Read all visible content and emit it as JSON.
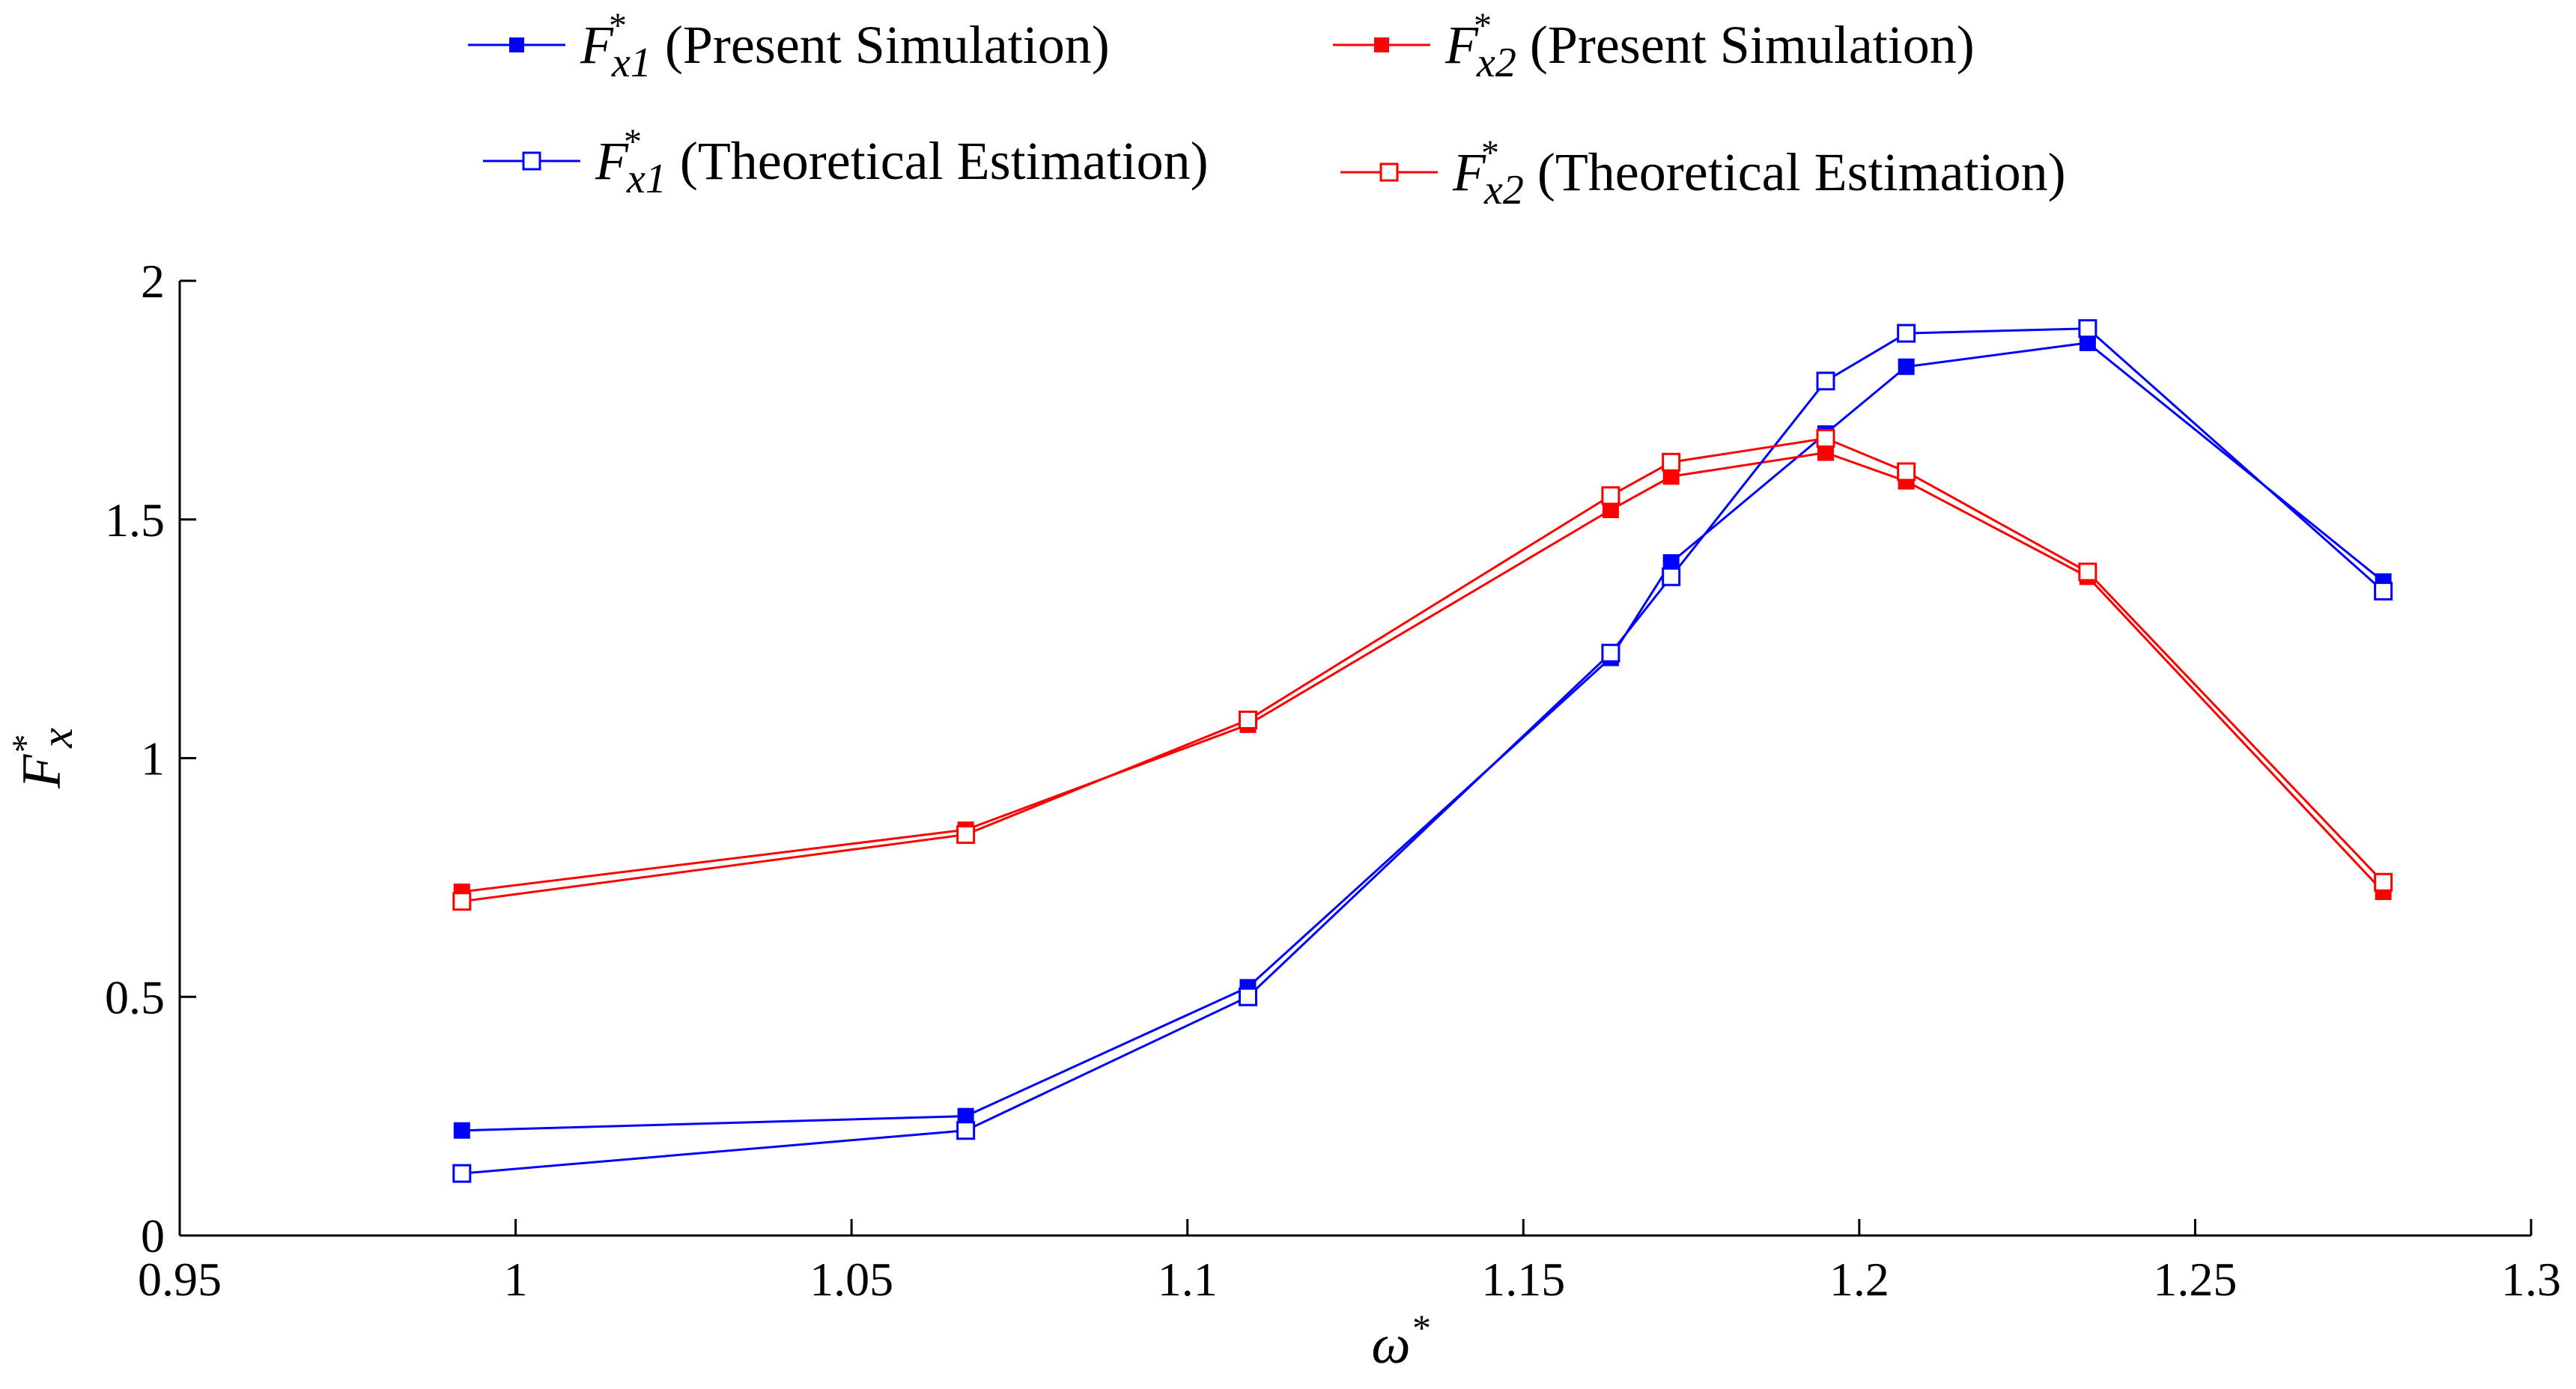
{
  "chart_data": {
    "type": "line",
    "title": "",
    "xlabel": "ω*",
    "ylabel": "F*x",
    "xlim": [
      0.95,
      1.3
    ],
    "ylim": [
      0,
      2
    ],
    "xticks": [
      "0.95",
      "1",
      "1.05",
      "1.1",
      "1.15",
      "1.2",
      "1.25",
      "1.3"
    ],
    "yticks": [
      "0",
      "0.5",
      "1",
      "1.5",
      "2"
    ],
    "grid": false,
    "legend_position": "top",
    "series": [
      {
        "name": "F*x1 (Present Simulation)",
        "symbol": "F",
        "subscript": "x1",
        "caption": "(Present Simulation)",
        "color": "#0000ff",
        "marker": "filled-square",
        "x": [
          0.992,
          1.067,
          1.109,
          1.163,
          1.172,
          1.195,
          1.207,
          1.234,
          1.278
        ],
        "y": [
          0.22,
          0.25,
          0.52,
          1.21,
          1.41,
          1.68,
          1.82,
          1.87,
          1.37
        ]
      },
      {
        "name": "F*x2 (Present Simulation)",
        "symbol": "F",
        "subscript": "x2",
        "caption": "(Present Simulation)",
        "color": "#ff0000",
        "marker": "filled-square",
        "x": [
          0.992,
          1.067,
          1.109,
          1.163,
          1.172,
          1.195,
          1.207,
          1.234,
          1.278
        ],
        "y": [
          0.72,
          0.85,
          1.07,
          1.52,
          1.59,
          1.64,
          1.58,
          1.38,
          0.72
        ]
      },
      {
        "name": "F*x1 (Theoretical Estimation)",
        "symbol": "F",
        "subscript": "x1",
        "caption": "(Theoretical Estimation)",
        "color": "#0000ff",
        "marker": "open-square",
        "x": [
          0.992,
          1.067,
          1.109,
          1.163,
          1.172,
          1.195,
          1.207,
          1.234,
          1.278
        ],
        "y": [
          0.13,
          0.22,
          0.5,
          1.22,
          1.38,
          1.79,
          1.89,
          1.9,
          1.35
        ]
      },
      {
        "name": "F*x2 (Theoretical Estimation)",
        "symbol": "F",
        "subscript": "x2",
        "caption": "(Theoretical Estimation)",
        "color": "#ff0000",
        "marker": "open-square",
        "x": [
          0.992,
          1.067,
          1.109,
          1.163,
          1.172,
          1.195,
          1.207,
          1.234,
          1.278
        ],
        "y": [
          0.7,
          0.84,
          1.08,
          1.55,
          1.62,
          1.67,
          1.6,
          1.39,
          0.74
        ]
      }
    ]
  }
}
